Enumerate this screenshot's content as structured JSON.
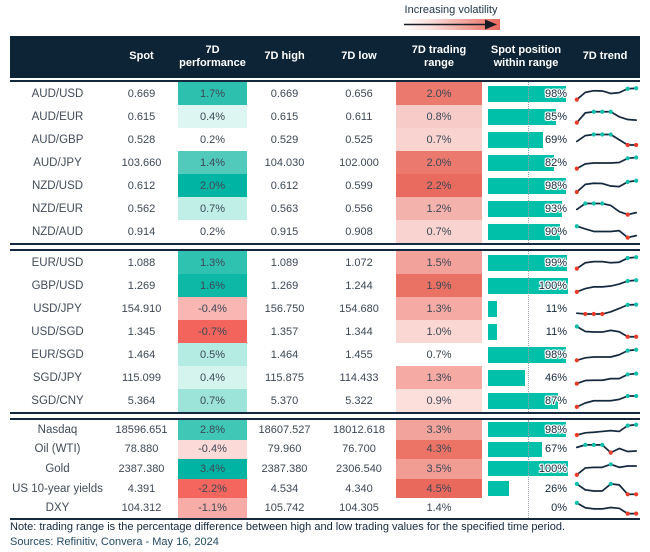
{
  "legend": {
    "label": "Increasing volatility"
  },
  "colors": {
    "header_bg": "#0d2436",
    "bar_teal": "#00c0aa",
    "spark_line": "#15293e",
    "marker_high": "#13bfad",
    "marker_low": "#ea3b29",
    "gradient_strong": "#e96a5e",
    "text": "#3c4856"
  },
  "chart_data": {
    "type": "table",
    "columns": [
      "",
      "Spot",
      "7D\nperformance",
      "7D high",
      "7D low",
      "7D trading\nrange",
      "Spot position\nwithin range",
      "7D trend"
    ],
    "legend_note": "Increasing volatility",
    "groups": [
      {
        "rows": [
          {
            "name": "AUD/USD",
            "spot": "0.669",
            "performance_7d": "1.7%",
            "performance_color": "#2ec0af",
            "high_7d": "0.669",
            "low_7d": "0.656",
            "trading_range_7d": "2.0%",
            "range_color": "#ec796d",
            "spot_position_pct": 98,
            "spot_position_label": "98%",
            "trend_7d": {
              "points": [
                0.08,
                0.6,
                0.72,
                0.7,
                0.52,
                0.58,
                0.86,
                0.9
              ],
              "high_marker_idx": [
                6,
                7
              ],
              "low_marker_idx": [
                0
              ]
            }
          },
          {
            "name": "AUD/EUR",
            "spot": "0.615",
            "performance_7d": "0.4%",
            "performance_color": "#ddf6f2",
            "high_7d": "0.615",
            "low_7d": "0.611",
            "trading_range_7d": "0.8%",
            "range_color": "#f7ccc8",
            "spot_position_pct": 85,
            "spot_position_label": "85%",
            "trend_7d": {
              "points": [
                0.08,
                0.78,
                0.86,
                0.86,
                0.86,
                0.5,
                0.3,
                0.26
              ],
              "high_marker_idx": [
                2,
                3,
                4
              ],
              "low_marker_idx": [
                0
              ]
            }
          },
          {
            "name": "AUD/GBP",
            "spot": "0.528",
            "performance_7d": "0.2%",
            "performance_color": "#ffffff",
            "high_7d": "0.529",
            "low_7d": "0.525",
            "trading_range_7d": "0.7%",
            "range_color": "#f8d3cf",
            "spot_position_pct": 69,
            "spot_position_label": "69%",
            "trend_7d": {
              "points": [
                0.38,
                0.8,
                0.88,
                0.88,
                0.88,
                0.5,
                0.12,
                0.12
              ],
              "high_marker_idx": [
                2,
                3,
                4
              ],
              "low_marker_idx": [
                6,
                7
              ]
            }
          },
          {
            "name": "AUD/JPY",
            "spot": "103.660",
            "performance_7d": "1.4%",
            "performance_color": "#52cabb",
            "high_7d": "104.030",
            "low_7d": "102.000",
            "trading_range_7d": "2.0%",
            "range_color": "#ec796d",
            "spot_position_pct": 82,
            "spot_position_label": "82%",
            "trend_7d": {
              "points": [
                0.08,
                0.42,
                0.48,
                0.48,
                0.48,
                0.52,
                0.82,
                0.88
              ],
              "high_marker_idx": [
                6,
                7
              ],
              "low_marker_idx": [
                0
              ]
            }
          },
          {
            "name": "NZD/USD",
            "spot": "0.612",
            "performance_7d": "2.0%",
            "performance_color": "#00b4a3",
            "high_7d": "0.612",
            "low_7d": "0.599",
            "trading_range_7d": "2.2%",
            "range_color": "#e96a5e",
            "spot_position_pct": 98,
            "spot_position_label": "98%",
            "trend_7d": {
              "points": [
                0.05,
                0.6,
                0.68,
                0.66,
                0.48,
                0.44,
                0.78,
                0.86
              ],
              "high_marker_idx": [
                6,
                7
              ],
              "low_marker_idx": [
                0
              ]
            }
          },
          {
            "name": "NZD/EUR",
            "spot": "0.562",
            "performance_7d": "0.7%",
            "performance_color": "#c0efe8",
            "high_7d": "0.563",
            "low_7d": "0.556",
            "trading_range_7d": "1.2%",
            "range_color": "#f3b3ac",
            "spot_position_pct": 93,
            "spot_position_label": "93%",
            "trend_7d": {
              "points": [
                0.45,
                0.88,
                0.88,
                0.88,
                0.74,
                0.3,
                0.08,
                0.22
              ],
              "high_marker_idx": [
                1,
                2,
                3
              ],
              "low_marker_idx": [
                6
              ]
            }
          },
          {
            "name": "NZD/AUD",
            "spot": "0.914",
            "performance_7d": "0.2%",
            "performance_color": "#ffffff",
            "high_7d": "0.915",
            "low_7d": "0.908",
            "trading_range_7d": "0.7%",
            "range_color": "#f8d3cf",
            "spot_position_pct": 90,
            "spot_position_label": "90%",
            "trend_7d": {
              "points": [
                0.9,
                0.7,
                0.52,
                0.52,
                0.52,
                0.58,
                0.08,
                0.22
              ],
              "high_marker_idx": [
                0
              ],
              "low_marker_idx": [
                6
              ]
            }
          }
        ]
      },
      {
        "rows": [
          {
            "name": "EUR/USD",
            "spot": "1.088",
            "performance_7d": "1.3%",
            "performance_color": "#30c2b1",
            "high_7d": "1.089",
            "low_7d": "1.072",
            "trading_range_7d": "1.5%",
            "range_color": "#f3a29b",
            "spot_position_pct": 99,
            "spot_position_label": "99%",
            "trend_7d": {
              "points": [
                0.08,
                0.5,
                0.58,
                0.58,
                0.5,
                0.54,
                0.84,
                0.9
              ],
              "high_marker_idx": [
                6,
                7
              ],
              "low_marker_idx": [
                0
              ]
            }
          },
          {
            "name": "GBP/USD",
            "spot": "1.269",
            "performance_7d": "1.6%",
            "performance_color": "#0db8a7",
            "high_7d": "1.269",
            "low_7d": "1.244",
            "trading_range_7d": "1.9%",
            "range_color": "#ea7265",
            "spot_position_pct": 100,
            "spot_position_label": "100%",
            "trend_7d": {
              "points": [
                0.06,
                0.3,
                0.42,
                0.42,
                0.48,
                0.62,
                0.84,
                0.9
              ],
              "high_marker_idx": [
                6,
                7
              ],
              "low_marker_idx": [
                0
              ]
            }
          },
          {
            "name": "USD/JPY",
            "spot": "154.910",
            "performance_7d": "-0.4%",
            "performance_color": "#f9b6b2",
            "high_7d": "156.750",
            "low_7d": "154.680",
            "trading_range_7d": "1.3%",
            "range_color": "#f5aba4",
            "spot_position_pct": 11,
            "spot_position_label": "11%",
            "trend_7d": {
              "points": [
                0.18,
                0.12,
                0.12,
                0.12,
                0.28,
                0.52,
                0.78,
                0.8
              ],
              "high_marker_idx": [
                6,
                7
              ],
              "low_marker_idx": [
                1,
                2,
                3
              ]
            }
          },
          {
            "name": "USD/SGD",
            "spot": "1.345",
            "performance_7d": "-0.7%",
            "performance_color": "#f3655c",
            "high_7d": "1.357",
            "low_7d": "1.344",
            "trading_range_7d": "1.0%",
            "range_color": "#fbd7d4",
            "spot_position_pct": 11,
            "spot_position_label": "11%",
            "trend_7d": {
              "points": [
                0.88,
                0.52,
                0.48,
                0.48,
                0.6,
                0.5,
                0.14,
                0.14
              ],
              "high_marker_idx": [
                0
              ],
              "low_marker_idx": [
                6,
                7
              ]
            }
          },
          {
            "name": "EUR/SGD",
            "spot": "1.464",
            "performance_7d": "0.5%",
            "performance_color": "#b4ebe2",
            "high_7d": "1.464",
            "low_7d": "1.455",
            "trading_range_7d": "0.7%",
            "range_color": "#ffffff",
            "spot_position_pct": 98,
            "spot_position_label": "98%",
            "trend_7d": {
              "points": [
                0.1,
                0.28,
                0.34,
                0.34,
                0.34,
                0.5,
                0.8,
                0.86
              ],
              "high_marker_idx": [
                6,
                7
              ],
              "low_marker_idx": [
                0
              ]
            }
          },
          {
            "name": "SGD/JPY",
            "spot": "115.099",
            "performance_7d": "0.4%",
            "performance_color": "#d5f4ee",
            "high_7d": "115.875",
            "low_7d": "114.433",
            "trading_range_7d": "1.3%",
            "range_color": "#f5aba4",
            "spot_position_pct": 46,
            "spot_position_label": "46%",
            "trend_7d": {
              "points": [
                0.08,
                0.3,
                0.32,
                0.32,
                0.44,
                0.44,
                0.74,
                0.8
              ],
              "high_marker_idx": [
                6,
                7
              ],
              "low_marker_idx": [
                0
              ]
            }
          },
          {
            "name": "SGD/CNY",
            "spot": "5.364",
            "performance_7d": "0.7%",
            "performance_color": "#9ce4d9",
            "high_7d": "5.370",
            "low_7d": "5.322",
            "trading_range_7d": "0.9%",
            "range_color": "#fcdedb",
            "spot_position_pct": 87,
            "spot_position_label": "87%",
            "trend_7d": {
              "points": [
                0.06,
                0.34,
                0.5,
                0.5,
                0.5,
                0.6,
                0.84,
                0.84
              ],
              "high_marker_idx": [
                6,
                7
              ],
              "low_marker_idx": [
                0
              ]
            }
          }
        ]
      },
      {
        "rows": [
          {
            "name": "Nasdaq",
            "spot": "18596.651",
            "performance_7d": "2.8%",
            "performance_color": "#40c7b6",
            "high_7d": "18607.527",
            "low_7d": "18012.618",
            "trading_range_7d": "3.3%",
            "range_color": "#f2a39b",
            "spot_position_pct": 98,
            "spot_position_label": "98%",
            "trend_7d": {
              "points": [
                0.12,
                0.28,
                0.32,
                0.38,
                0.44,
                0.38,
                0.8,
                0.86
              ],
              "high_marker_idx": [
                6,
                7
              ],
              "low_marker_idx": [
                0
              ]
            }
          },
          {
            "name": "Oil (WTI)",
            "spot": "78.880",
            "performance_7d": "-0.4%",
            "performance_color": "#fcdad8",
            "high_7d": "79.960",
            "low_7d": "76.700",
            "trading_range_7d": "4.3%",
            "range_color": "#ec7467",
            "spot_position_pct": 67,
            "spot_position_label": "67%",
            "trend_7d": {
              "points": [
                0.6,
                0.78,
                0.78,
                0.78,
                0.22,
                0.52,
                0.3,
                0.34
              ],
              "high_marker_idx": [
                1,
                2,
                3
              ],
              "low_marker_idx": [
                4
              ]
            }
          },
          {
            "name": "Gold",
            "spot": "2387.380",
            "performance_7d": "3.4%",
            "performance_color": "#00b4a3",
            "high_7d": "2387.380",
            "low_7d": "2306.540",
            "trading_range_7d": "3.5%",
            "range_color": "#f29d94",
            "spot_position_pct": 100,
            "spot_position_label": "100%",
            "trend_7d": {
              "points": [
                0.06,
                0.56,
                0.6,
                0.6,
                0.82,
                0.6,
                0.7,
                0.7
              ],
              "high_marker_idx": [
                4
              ],
              "low_marker_idx": [
                0
              ]
            }
          },
          {
            "name": "US 10-year yields",
            "spot": "4.391",
            "performance_7d": "-2.2%",
            "performance_color": "#f4665e",
            "high_7d": "4.534",
            "low_7d": "4.340",
            "trading_range_7d": "4.5%",
            "range_color": "#ea695d",
            "spot_position_pct": 26,
            "spot_position_label": "26%",
            "trend_7d": {
              "points": [
                0.85,
                0.42,
                0.34,
                0.34,
                0.85,
                0.78,
                0.1,
                0.1
              ],
              "high_marker_idx": [
                0,
                4
              ],
              "low_marker_idx": [
                6,
                7
              ]
            }
          },
          {
            "name": "DXY",
            "spot": "104.312",
            "performance_7d": "-1.1%",
            "performance_color": "#f8aca7",
            "high_7d": "105.742",
            "low_7d": "104.305",
            "trading_range_7d": "1.4%",
            "range_color": "#ffffff",
            "spot_position_pct": 0,
            "spot_position_label": "0%",
            "trend_7d": {
              "points": [
                0.85,
                0.5,
                0.42,
                0.42,
                0.52,
                0.46,
                0.08,
                0.08
              ],
              "high_marker_idx": [
                0
              ],
              "low_marker_idx": [
                6,
                7
              ]
            }
          }
        ]
      }
    ]
  },
  "footer": {
    "note": "Note: trading range is the percentage difference between high and low trading values for the specified time period.",
    "sources": "Sources: Refinitiv, Convera - May 16, 2024"
  }
}
